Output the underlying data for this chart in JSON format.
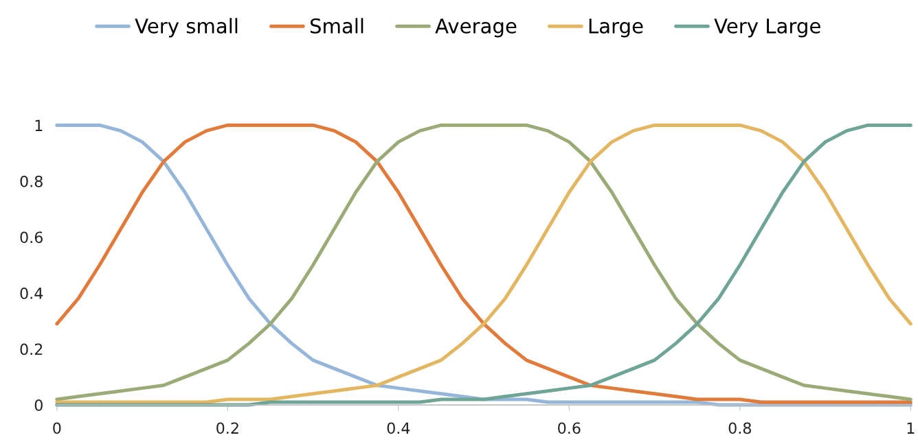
{
  "chart_data": {
    "type": "line",
    "x": [
      0,
      0.025,
      0.05,
      0.075,
      0.1,
      0.125,
      0.15,
      0.175,
      0.2,
      0.225,
      0.25,
      0.275,
      0.3,
      0.325,
      0.35,
      0.375,
      0.4,
      0.425,
      0.45,
      0.475,
      0.5,
      0.525,
      0.55,
      0.575,
      0.6,
      0.625,
      0.65,
      0.675,
      0.7,
      0.725,
      0.75,
      0.775,
      0.8,
      0.825,
      0.85,
      0.875,
      0.9,
      0.925,
      0.95,
      0.975,
      1
    ],
    "series": [
      {
        "name": "Very small",
        "color": "#95b6d9",
        "values": [
          1,
          1,
          1,
          0.98,
          0.94,
          0.87,
          0.76,
          0.63,
          0.5,
          0.38,
          0.29,
          0.22,
          0.16,
          0.13,
          0.1,
          0.07,
          0.06,
          0.05,
          0.04,
          0.03,
          0.02,
          0.02,
          0.02,
          0.01,
          0.01,
          0.01,
          0.01,
          0.01,
          0.01,
          0.01,
          0.01,
          0,
          0,
          0,
          0,
          0,
          0,
          0,
          0,
          0,
          0
        ]
      },
      {
        "name": "Small",
        "color": "#e07b3c",
        "values": [
          0.29,
          0.38,
          0.5,
          0.63,
          0.76,
          0.87,
          0.94,
          0.98,
          1,
          1,
          1,
          1,
          1,
          0.98,
          0.94,
          0.87,
          0.76,
          0.63,
          0.5,
          0.38,
          0.29,
          0.22,
          0.16,
          0.13,
          0.1,
          0.07,
          0.06,
          0.05,
          0.04,
          0.03,
          0.02,
          0.02,
          0.02,
          0.01,
          0.01,
          0.01,
          0.01,
          0.01,
          0.01,
          0.01,
          0.01
        ]
      },
      {
        "name": "Average",
        "color": "#9aab78",
        "values": [
          0.02,
          0.03,
          0.04,
          0.05,
          0.06,
          0.07,
          0.1,
          0.13,
          0.16,
          0.22,
          0.29,
          0.38,
          0.5,
          0.63,
          0.76,
          0.87,
          0.94,
          0.98,
          1,
          1,
          1,
          1,
          1,
          0.98,
          0.94,
          0.87,
          0.76,
          0.63,
          0.5,
          0.38,
          0.29,
          0.22,
          0.16,
          0.13,
          0.1,
          0.07,
          0.06,
          0.05,
          0.04,
          0.03,
          0.02
        ]
      },
      {
        "name": "Large",
        "color": "#e3b661",
        "values": [
          0.01,
          0.01,
          0.01,
          0.01,
          0.01,
          0.01,
          0.01,
          0.01,
          0.02,
          0.02,
          0.02,
          0.03,
          0.04,
          0.05,
          0.06,
          0.07,
          0.1,
          0.13,
          0.16,
          0.22,
          0.29,
          0.38,
          0.5,
          0.63,
          0.76,
          0.87,
          0.94,
          0.98,
          1,
          1,
          1,
          1,
          1,
          0.98,
          0.94,
          0.87,
          0.76,
          0.63,
          0.5,
          0.38,
          0.29
        ]
      },
      {
        "name": "Very Large",
        "color": "#6fa597",
        "values": [
          0,
          0,
          0,
          0,
          0,
          0,
          0,
          0,
          0,
          0,
          0.01,
          0.01,
          0.01,
          0.01,
          0.01,
          0.01,
          0.01,
          0.01,
          0.02,
          0.02,
          0.02,
          0.03,
          0.04,
          0.05,
          0.06,
          0.07,
          0.1,
          0.13,
          0.16,
          0.22,
          0.29,
          0.38,
          0.5,
          0.63,
          0.76,
          0.87,
          0.94,
          0.98,
          1,
          1,
          1
        ]
      }
    ],
    "xlim": [
      0,
      1
    ],
    "xticks": [
      0,
      0.2,
      0.4,
      0.6,
      0.8,
      1
    ],
    "ylim": [
      0,
      1
    ],
    "yticks": [
      0,
      0.2,
      0.4,
      0.6,
      0.8,
      1
    ],
    "grid": false,
    "legend": "top",
    "marker": "none",
    "line_style": "solid"
  }
}
